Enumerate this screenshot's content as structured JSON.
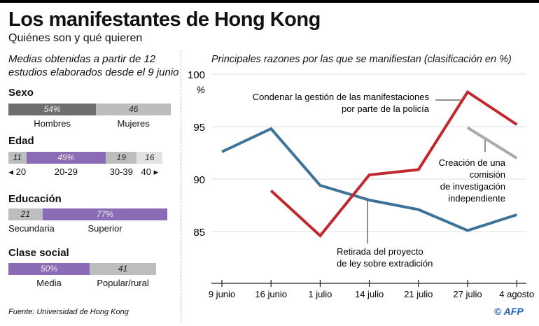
{
  "title": "Los manifestantes de Hong Kong",
  "subtitle": "Quiénes son y qué quieren",
  "note": "Medias obtenidas a partir de 12 estudios elaborados desde el 9 junio",
  "source": "Fuente: Universidad de Hong Kong",
  "credit": "© AFP",
  "demographics": [
    {
      "label": "Sexo",
      "segments": [
        {
          "name": "Hombres",
          "value": 54,
          "text": "54%",
          "color": "#6d6e70"
        },
        {
          "name": "Mujeres",
          "value": 46,
          "text": "46",
          "color": "#bcbdbf"
        }
      ]
    },
    {
      "label": "Edad",
      "segments": [
        {
          "name": "◂ 20",
          "value": 11,
          "text": "11",
          "color": "#bcbdbf"
        },
        {
          "name": "20-29",
          "value": 49,
          "text": "49%",
          "color": "#8a6bb5"
        },
        {
          "name": "30-39",
          "value": 19,
          "text": "19",
          "color": "#bcbdbf"
        },
        {
          "name": "40 ▸",
          "value": 16,
          "text": "16",
          "color": "#e3e3e4"
        }
      ]
    },
    {
      "label": "Educación",
      "segments": [
        {
          "name": "Secundaria",
          "value": 21,
          "text": "21",
          "color": "#bcbdbf"
        },
        {
          "name": "Superior",
          "value": 77,
          "text": "77%",
          "color": "#8a6bb5"
        }
      ]
    },
    {
      "label": "Clase social",
      "segments": [
        {
          "name": "Media",
          "value": 50,
          "text": "50%",
          "color": "#8a6bb5"
        },
        {
          "name": "Popular/rural",
          "value": 41,
          "text": "41",
          "color": "#bcbdbf"
        }
      ]
    }
  ],
  "chart_data": {
    "type": "line",
    "title": "Principales razones por las que se manifiestan (clasificación en %)",
    "ylabel": "%",
    "ylim": [
      80,
      100
    ],
    "yticks": [
      85,
      90,
      95,
      100
    ],
    "grid": true,
    "categories": [
      "9 junio",
      "16 junio",
      "1 julio",
      "14 julio",
      "21 julio",
      "27 julio",
      "4 agosto"
    ],
    "series": [
      {
        "name": "Retirada del proyecto de ley sobre  extradición",
        "color": "#3d7399",
        "values": [
          92.6,
          94.8,
          89.4,
          88.0,
          87.1,
          85.1,
          86.6
        ]
      },
      {
        "name": "Condenar la gestión de las manifestaciones por parte de la policía",
        "color": "#c0282d",
        "values": [
          null,
          88.9,
          84.6,
          90.4,
          90.9,
          98.3,
          95.2
        ]
      },
      {
        "name": "Creación de una comisión de investigación independiente",
        "color": "#aaaaaa",
        "values": [
          null,
          null,
          null,
          null,
          null,
          94.9,
          92.0
        ]
      }
    ]
  }
}
